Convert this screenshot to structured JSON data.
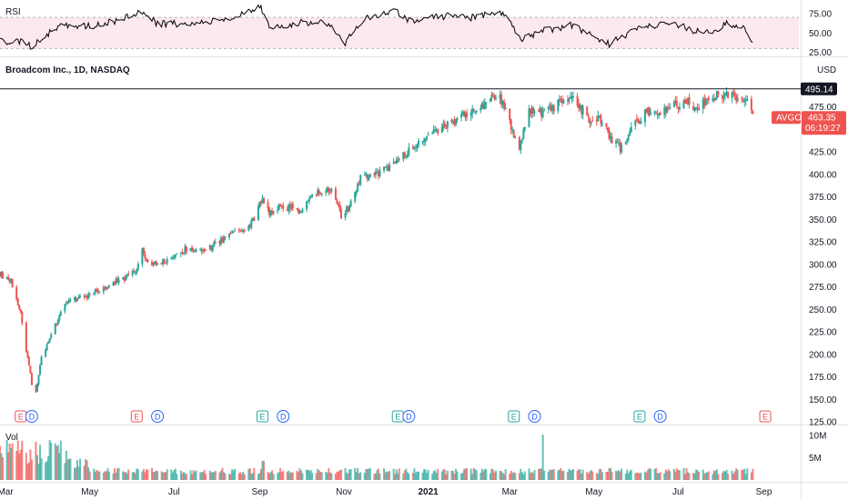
{
  "header": {
    "instrument": "Broadcom Inc., 1D, NASDAQ",
    "currency": "USD",
    "rsi_label": "RSI",
    "vol_label": "Vol"
  },
  "price_tags": {
    "resistance": "495.14",
    "symbol": "AVGO",
    "last": "463.35",
    "countdown": "06:19:27"
  },
  "colors": {
    "up": "#26a69a",
    "down": "#ef5350",
    "rsi_band": "#fce8ef",
    "rsi_line": "#000000",
    "earnings": "#26a69a",
    "earnings_past": "#ef5350",
    "dividend": "#2962ff"
  },
  "events": [
    {
      "type": "E",
      "date": "2020-03-12",
      "tone": "earnings_past"
    },
    {
      "type": "D",
      "date": "2020-03-20",
      "tone": "dividend"
    },
    {
      "type": "E",
      "date": "2020-06-04",
      "tone": "earnings_past"
    },
    {
      "type": "D",
      "date": "2020-06-19",
      "tone": "dividend"
    },
    {
      "type": "E",
      "date": "2020-09-03",
      "tone": "earnings"
    },
    {
      "type": "D",
      "date": "2020-09-18",
      "tone": "dividend"
    },
    {
      "type": "E",
      "date": "2020-12-10",
      "tone": "earnings"
    },
    {
      "type": "D",
      "date": "2020-12-18",
      "tone": "dividend"
    },
    {
      "type": "E",
      "date": "2021-03-04",
      "tone": "earnings"
    },
    {
      "type": "D",
      "date": "2021-03-19",
      "tone": "dividend"
    },
    {
      "type": "E",
      "date": "2021-06-03",
      "tone": "earnings"
    },
    {
      "type": "D",
      "date": "2021-06-18",
      "tone": "dividend"
    },
    {
      "type": "E",
      "date": "2021-09-02",
      "tone": "earnings_past"
    }
  ],
  "chart_data": {
    "type": "candlestick",
    "x_start": "2020-02-26",
    "x_end": "2021-08-31",
    "x_ticks": [
      {
        "label": "Mar",
        "date": "2020-03-01"
      },
      {
        "label": "May",
        "date": "2020-05-01"
      },
      {
        "label": "Jul",
        "date": "2020-07-01"
      },
      {
        "label": "Sep",
        "date": "2020-09-01"
      },
      {
        "label": "Nov",
        "date": "2020-11-01"
      },
      {
        "label": "2021",
        "date": "2021-01-01"
      },
      {
        "label": "Mar",
        "date": "2021-03-01"
      },
      {
        "label": "May",
        "date": "2021-05-01"
      },
      {
        "label": "Jul",
        "date": "2021-07-01"
      },
      {
        "label": "Sep",
        "date": "2021-09-01"
      }
    ],
    "price_axis": {
      "ylim": [
        125,
        505
      ],
      "ticks": [
        "125.00",
        "150.00",
        "175.00",
        "200.00",
        "225.00",
        "250.00",
        "275.00",
        "300.00",
        "325.00",
        "350.00",
        "375.00",
        "400.00",
        "425.00",
        "450.00",
        "475.00"
      ]
    },
    "rsi_axis": {
      "ylim": [
        20,
        90
      ],
      "band": [
        30,
        70
      ],
      "ticks": [
        "25.00",
        "50.00",
        "75.00"
      ]
    },
    "volume_axis": {
      "ylim": [
        0,
        11000000
      ],
      "ticks": [
        {
          "label": "5M",
          "value": 5000000
        },
        {
          "label": "10M",
          "value": 10000000
        }
      ]
    },
    "resistance_level": 495.14,
    "last_price": 463.35,
    "price_path": [
      [
        "2020-02-26",
        290
      ],
      [
        "2020-03-05",
        282
      ],
      [
        "2020-03-12",
        245
      ],
      [
        "2020-03-16",
        205
      ],
      [
        "2020-03-20",
        168
      ],
      [
        "2020-03-23",
        158
      ],
      [
        "2020-03-27",
        195
      ],
      [
        "2020-04-03",
        222
      ],
      [
        "2020-04-14",
        260
      ],
      [
        "2020-04-24",
        262
      ],
      [
        "2020-05-08",
        272
      ],
      [
        "2020-05-22",
        282
      ],
      [
        "2020-06-03",
        292
      ],
      [
        "2020-06-08",
        318
      ],
      [
        "2020-06-12",
        300
      ],
      [
        "2020-06-26",
        305
      ],
      [
        "2020-07-10",
        318
      ],
      [
        "2020-07-24",
        316
      ],
      [
        "2020-08-07",
        328
      ],
      [
        "2020-08-20",
        340
      ],
      [
        "2020-08-28",
        348
      ],
      [
        "2020-09-02",
        372
      ],
      [
        "2020-09-08",
        358
      ],
      [
        "2020-09-18",
        365
      ],
      [
        "2020-09-30",
        360
      ],
      [
        "2020-10-14",
        382
      ],
      [
        "2020-10-23",
        382
      ],
      [
        "2020-10-30",
        355
      ],
      [
        "2020-11-05",
        365
      ],
      [
        "2020-11-13",
        395
      ],
      [
        "2020-11-25",
        400
      ],
      [
        "2020-12-04",
        410
      ],
      [
        "2020-12-14",
        422
      ],
      [
        "2020-12-23",
        432
      ],
      [
        "2021-01-06",
        448
      ],
      [
        "2021-01-20",
        460
      ],
      [
        "2021-02-03",
        470
      ],
      [
        "2021-02-12",
        480
      ],
      [
        "2021-02-19",
        490
      ],
      [
        "2021-02-26",
        474
      ],
      [
        "2021-03-04",
        445
      ],
      [
        "2021-03-08",
        428
      ],
      [
        "2021-03-15",
        470
      ],
      [
        "2021-03-26",
        468
      ],
      [
        "2021-04-08",
        482
      ],
      [
        "2021-04-16",
        485
      ],
      [
        "2021-04-27",
        462
      ],
      [
        "2021-05-07",
        460
      ],
      [
        "2021-05-12",
        440
      ],
      [
        "2021-05-20",
        430
      ],
      [
        "2021-05-28",
        452
      ],
      [
        "2021-06-08",
        470
      ],
      [
        "2021-06-18",
        468
      ],
      [
        "2021-06-30",
        478
      ],
      [
        "2021-07-09",
        482
      ],
      [
        "2021-07-16",
        470
      ],
      [
        "2021-07-23",
        488
      ],
      [
        "2021-08-04",
        490
      ],
      [
        "2021-08-13",
        487
      ],
      [
        "2021-08-20",
        480
      ],
      [
        "2021-08-24",
        463.35
      ]
    ],
    "rsi_path": [
      [
        "2020-02-26",
        40
      ],
      [
        "2020-03-12",
        38
      ],
      [
        "2020-03-20",
        33
      ],
      [
        "2020-04-08",
        58
      ],
      [
        "2020-05-08",
        60
      ],
      [
        "2020-06-08",
        76
      ],
      [
        "2020-06-19",
        62
      ],
      [
        "2020-07-15",
        62
      ],
      [
        "2020-08-14",
        68
      ],
      [
        "2020-09-01",
        86
      ],
      [
        "2020-09-09",
        55
      ],
      [
        "2020-10-01",
        63
      ],
      [
        "2020-10-21",
        63
      ],
      [
        "2020-11-02",
        38
      ],
      [
        "2020-11-16",
        68
      ],
      [
        "2020-12-08",
        78
      ],
      [
        "2020-12-22",
        62
      ],
      [
        "2021-01-08",
        72
      ],
      [
        "2021-02-01",
        70
      ],
      [
        "2021-02-22",
        76
      ],
      [
        "2021-03-04",
        58
      ],
      [
        "2021-03-09",
        40
      ],
      [
        "2021-03-22",
        52
      ],
      [
        "2021-04-15",
        60
      ],
      [
        "2021-05-12",
        36
      ],
      [
        "2021-06-04",
        58
      ],
      [
        "2021-06-29",
        62
      ],
      [
        "2021-07-20",
        48
      ],
      [
        "2021-08-06",
        62
      ],
      [
        "2021-08-17",
        58
      ],
      [
        "2021-08-24",
        36
      ]
    ]
  }
}
